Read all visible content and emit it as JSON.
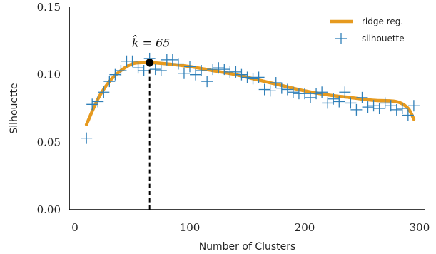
{
  "chart_data": {
    "type": "scatter",
    "xlabel": "Number of Clusters",
    "ylabel": "Silhouette",
    "xlim": [
      -5,
      305
    ],
    "ylim": [
      0.0,
      0.15
    ],
    "xticks": [
      0,
      100,
      200,
      300
    ],
    "yticks": [
      0.0,
      0.05,
      0.1,
      0.15
    ],
    "ytick_labels": [
      "0.00",
      "0.05",
      "0.10",
      "0.15"
    ],
    "grid": false,
    "legend_position": "top-right",
    "colors": {
      "ridge": "#E69A1F",
      "silhouette": "#2F7FB8",
      "marker": "#000000"
    },
    "series": [
      {
        "name": "ridge reg.",
        "kind": "line",
        "x": [
          10,
          20,
          30,
          40,
          50,
          60,
          65,
          80,
          100,
          120,
          140,
          160,
          180,
          200,
          220,
          240,
          260,
          280,
          290,
          295
        ],
        "values": [
          0.063,
          0.082,
          0.095,
          0.103,
          0.108,
          0.109,
          0.109,
          0.108,
          0.106,
          0.103,
          0.1,
          0.096,
          0.092,
          0.088,
          0.085,
          0.083,
          0.081,
          0.08,
          0.075,
          0.067
        ]
      },
      {
        "name": "silhouette",
        "kind": "scatter",
        "x": [
          10,
          15,
          20,
          25,
          30,
          35,
          40,
          45,
          50,
          55,
          60,
          65,
          70,
          75,
          80,
          85,
          90,
          95,
          100,
          105,
          110,
          115,
          120,
          125,
          130,
          135,
          140,
          145,
          150,
          155,
          160,
          165,
          170,
          175,
          180,
          185,
          190,
          195,
          200,
          205,
          210,
          215,
          220,
          225,
          230,
          235,
          240,
          245,
          250,
          255,
          260,
          265,
          270,
          275,
          280,
          285,
          290,
          295
        ],
        "values": [
          0.053,
          0.078,
          0.08,
          0.087,
          0.095,
          0.1,
          0.103,
          0.11,
          0.11,
          0.105,
          0.103,
          0.112,
          0.104,
          0.103,
          0.111,
          0.111,
          0.108,
          0.101,
          0.106,
          0.1,
          0.103,
          0.095,
          0.104,
          0.105,
          0.104,
          0.102,
          0.102,
          0.1,
          0.098,
          0.097,
          0.098,
          0.089,
          0.088,
          0.094,
          0.09,
          0.089,
          0.087,
          0.086,
          0.086,
          0.083,
          0.086,
          0.087,
          0.079,
          0.082,
          0.08,
          0.087,
          0.079,
          0.074,
          0.083,
          0.076,
          0.077,
          0.075,
          0.079,
          0.077,
          0.074,
          0.075,
          0.07,
          0.077
        ]
      }
    ],
    "annotation": {
      "label": "k̂ = 65",
      "x": 65,
      "y": 0.109
    }
  }
}
